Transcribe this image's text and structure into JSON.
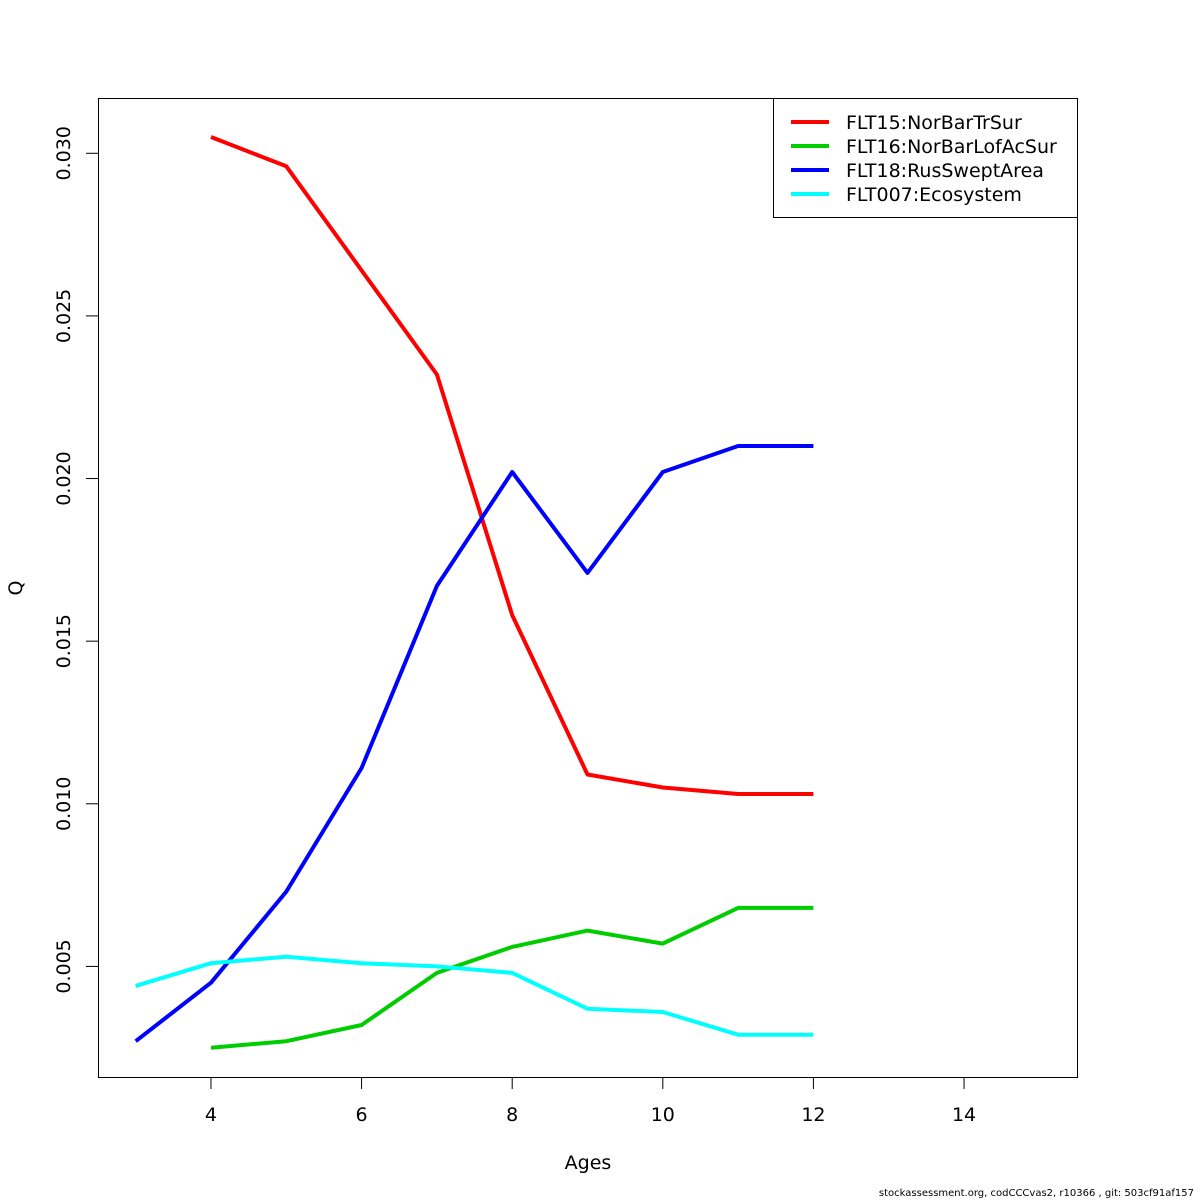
{
  "chart_data": {
    "type": "line",
    "title": "",
    "xlabel": "Ages",
    "ylabel": "Q",
    "xlim": [
      2.5,
      15.5
    ],
    "ylim": [
      0.0016,
      0.0317
    ],
    "xticks": [
      4,
      6,
      8,
      10,
      12,
      14
    ],
    "yticks": [
      0.005,
      0.01,
      0.015,
      0.02,
      0.025,
      0.03
    ],
    "ytick_labels": [
      "0.005",
      "0.010",
      "0.015",
      "0.020",
      "0.025",
      "0.030"
    ],
    "grid": false,
    "legend_position": "top-right",
    "series": [
      {
        "name": "FLT15:NorBarTrSur",
        "color": "#ff0000",
        "x": [
          4,
          5,
          6,
          7,
          8,
          9,
          10,
          11,
          12
        ],
        "y": [
          0.0305,
          0.0296,
          0.0264,
          0.0232,
          0.0158,
          0.0109,
          0.0105,
          0.0103,
          0.0103
        ]
      },
      {
        "name": "FLT16:NorBarLofAcSur",
        "color": "#00cd00",
        "x": [
          4,
          5,
          6,
          7,
          8,
          9,
          10,
          11,
          12
        ],
        "y": [
          0.0025,
          0.0027,
          0.0032,
          0.0048,
          0.0056,
          0.0061,
          0.0057,
          0.0068,
          0.0068
        ]
      },
      {
        "name": "FLT18:RusSweptArea",
        "color": "#0000ff",
        "x": [
          3,
          4,
          5,
          6,
          7,
          8,
          9,
          10,
          11,
          12
        ],
        "y": [
          0.0027,
          0.0045,
          0.0073,
          0.0111,
          0.0167,
          0.0202,
          0.0171,
          0.0202,
          0.021,
          0.021
        ]
      },
      {
        "name": "FLT007:Ecosystem",
        "color": "#00ffff",
        "x": [
          3,
          4,
          5,
          6,
          7,
          8,
          9,
          10,
          11,
          12
        ],
        "y": [
          0.0044,
          0.0051,
          0.0053,
          0.0051,
          0.005,
          0.0048,
          0.0037,
          0.0036,
          0.0029,
          0.0029
        ]
      }
    ]
  },
  "footer": "stockassessment.org, codCCCvas2, r10366 , git: 503cf91af157"
}
